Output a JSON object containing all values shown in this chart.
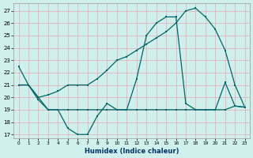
{
  "xlabel": "Humidex (Indice chaleur)",
  "bg_color": "#cff0ec",
  "grid_color": "#e8a8b0",
  "line_color": "#006666",
  "xlim": [
    -0.5,
    23.5
  ],
  "ylim": [
    16.7,
    27.6
  ],
  "yticks": [
    17,
    18,
    19,
    20,
    21,
    22,
    23,
    24,
    25,
    26,
    27
  ],
  "xticks": [
    0,
    1,
    2,
    3,
    4,
    5,
    6,
    7,
    8,
    9,
    10,
    11,
    12,
    13,
    14,
    15,
    16,
    17,
    18,
    19,
    20,
    21,
    22,
    23
  ],
  "line1_x": [
    0,
    1,
    2,
    3,
    4,
    5,
    6,
    7,
    8,
    9,
    10,
    11,
    12,
    13,
    14,
    15,
    16,
    17,
    18,
    19,
    20,
    21,
    22,
    23
  ],
  "line1_y": [
    22.5,
    21.0,
    19.8,
    19.0,
    19.0,
    17.5,
    17.0,
    17.0,
    18.5,
    19.5,
    19.0,
    19.0,
    21.5,
    25.0,
    26.0,
    26.5,
    26.5,
    19.5,
    19.0,
    19.0,
    19.0,
    21.2,
    19.3,
    19.2
  ],
  "line2_x": [
    0,
    1,
    2,
    3,
    4,
    5,
    6,
    7,
    8,
    9,
    10,
    11,
    12,
    13,
    14,
    15,
    16,
    17,
    18,
    19,
    20,
    21,
    22,
    23
  ],
  "line2_y": [
    21.0,
    21.0,
    20.0,
    19.0,
    19.0,
    19.0,
    19.0,
    19.0,
    19.0,
    19.0,
    19.0,
    19.0,
    19.0,
    19.0,
    19.0,
    19.0,
    19.0,
    19.0,
    19.0,
    19.0,
    19.0,
    19.0,
    19.3,
    19.2
  ],
  "line3_x": [
    0,
    1,
    2,
    3,
    4,
    5,
    6,
    7,
    8,
    9,
    10,
    11,
    12,
    13,
    14,
    15,
    16,
    17,
    18,
    19,
    20,
    21,
    22,
    23
  ],
  "line3_y": [
    21.0,
    21.0,
    20.0,
    20.2,
    20.5,
    21.0,
    21.0,
    21.0,
    21.5,
    22.2,
    23.0,
    23.3,
    23.8,
    24.3,
    24.8,
    25.3,
    26.0,
    27.0,
    27.2,
    26.5,
    25.5,
    23.8,
    21.0,
    19.2
  ]
}
